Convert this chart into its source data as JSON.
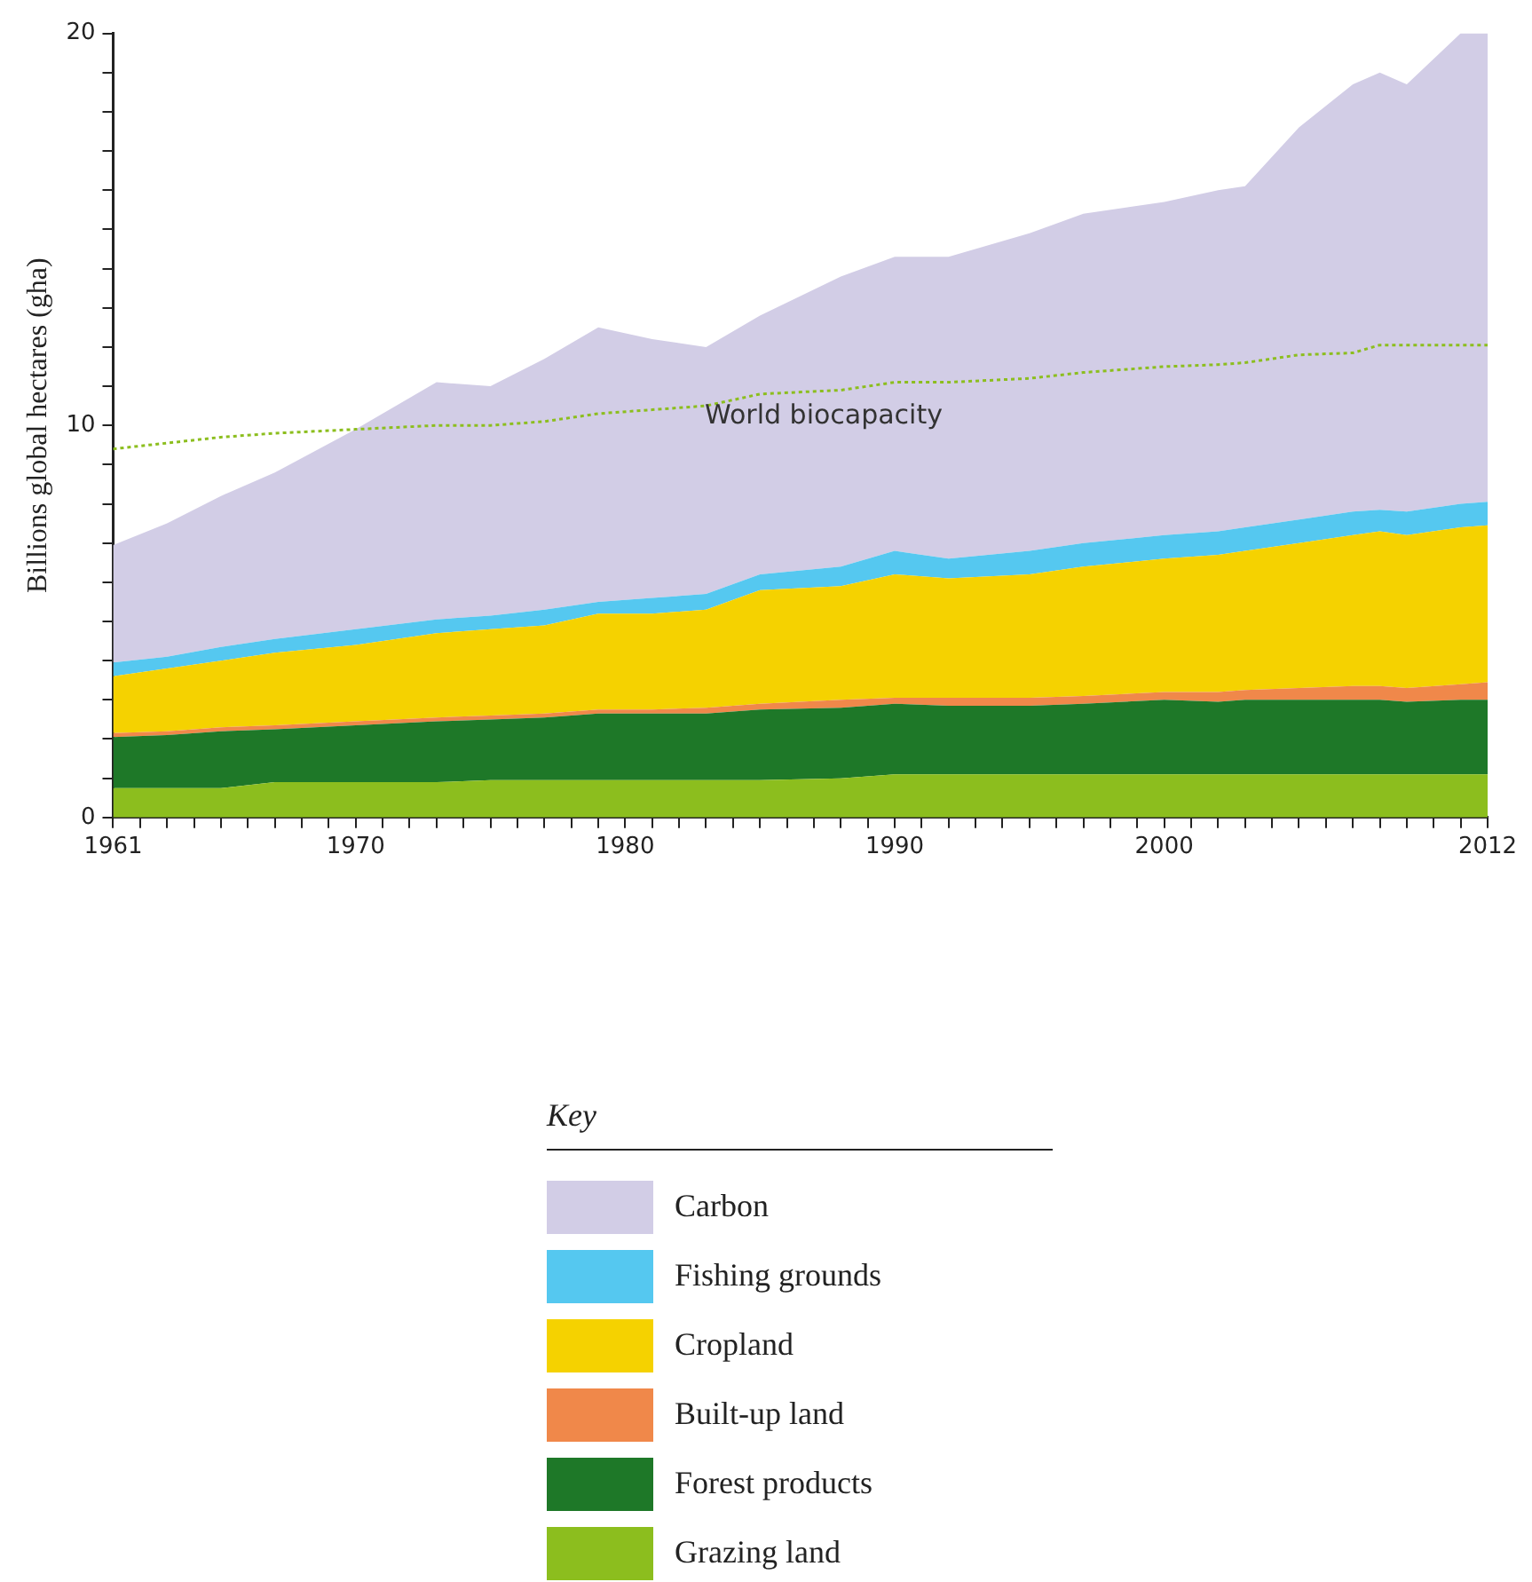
{
  "chart_data": {
    "type": "area",
    "stacked": true,
    "ylabel": "Billions global hectares (gha)",
    "legend_title": "Key",
    "legend": "bottom",
    "grid": false,
    "x": [
      1961,
      1963,
      1965,
      1967,
      1970,
      1973,
      1975,
      1977,
      1979,
      1981,
      1983,
      1985,
      1988,
      1990,
      1992,
      1995,
      1997,
      2000,
      2002,
      2003,
      2005,
      2007,
      2008,
      2009,
      2011,
      2012
    ],
    "xlim": [
      1961,
      2012
    ],
    "xticks": [
      1961,
      {
        "value": 1962,
        "label": null
      },
      {
        "value": 1963,
        "label": null
      },
      {
        "value": 1964,
        "label": null
      },
      {
        "value": 1965,
        "label": null
      },
      {
        "value": 1966,
        "label": null
      },
      {
        "value": 1967,
        "label": null
      },
      {
        "value": 1968,
        "label": null
      },
      {
        "value": 1969,
        "label": null
      },
      1970,
      {
        "value": 1971,
        "label": null
      },
      {
        "value": 1972,
        "label": null
      },
      {
        "value": 1973,
        "label": null
      },
      {
        "value": 1974,
        "label": null
      },
      {
        "value": 1975,
        "label": null
      },
      {
        "value": 1976,
        "label": null
      },
      {
        "value": 1977,
        "label": null
      },
      {
        "value": 1978,
        "label": null
      },
      {
        "value": 1979,
        "label": null
      },
      1980,
      {
        "value": 1981,
        "label": null
      },
      {
        "value": 1982,
        "label": null
      },
      {
        "value": 1983,
        "label": null
      },
      {
        "value": 1984,
        "label": null
      },
      {
        "value": 1985,
        "label": null
      },
      {
        "value": 1986,
        "label": null
      },
      {
        "value": 1987,
        "label": null
      },
      {
        "value": 1988,
        "label": null
      },
      {
        "value": 1989,
        "label": null
      },
      1990,
      {
        "value": 1991,
        "label": null
      },
      {
        "value": 1992,
        "label": null
      },
      {
        "value": 1993,
        "label": null
      },
      {
        "value": 1994,
        "label": null
      },
      {
        "value": 1995,
        "label": null
      },
      {
        "value": 1996,
        "label": null
      },
      {
        "value": 1997,
        "label": null
      },
      {
        "value": 1998,
        "label": null
      },
      {
        "value": 1999,
        "label": null
      },
      2000,
      {
        "value": 2001,
        "label": null
      },
      {
        "value": 2002,
        "label": null
      },
      {
        "value": 2003,
        "label": null
      },
      {
        "value": 2004,
        "label": null
      },
      {
        "value": 2005,
        "label": null
      },
      {
        "value": 2006,
        "label": null
      },
      {
        "value": 2007,
        "label": null
      },
      {
        "value": 2008,
        "label": null
      },
      {
        "value": 2009,
        "label": null
      },
      {
        "value": 2010,
        "label": null
      },
      {
        "value": 2011,
        "label": null
      },
      2012
    ],
    "ylim": [
      0,
      20
    ],
    "yticks": [
      0,
      {
        "value": 1,
        "label": null
      },
      {
        "value": 2,
        "label": null
      },
      {
        "value": 3,
        "label": null
      },
      {
        "value": 4,
        "label": null
      },
      {
        "value": 5,
        "label": null
      },
      {
        "value": 6,
        "label": null
      },
      {
        "value": 7,
        "label": null
      },
      {
        "value": 8,
        "label": null
      },
      {
        "value": 9,
        "label": null
      },
      10,
      {
        "value": 11,
        "label": null
      },
      {
        "value": 12,
        "label": null
      },
      {
        "value": 13,
        "label": null
      },
      {
        "value": 14,
        "label": null
      },
      {
        "value": 15,
        "label": null
      },
      {
        "value": 16,
        "label": null
      },
      {
        "value": 17,
        "label": null
      },
      {
        "value": 18,
        "label": null
      },
      {
        "value": 19,
        "label": null
      },
      20
    ],
    "series": [
      {
        "name": "Grazing land",
        "color": "#8cbe1e",
        "values": [
          0.75,
          0.75,
          0.75,
          0.9,
          0.9,
          0.9,
          0.95,
          0.95,
          0.95,
          0.95,
          0.95,
          0.95,
          1.0,
          1.1,
          1.1,
          1.1,
          1.1,
          1.1,
          1.1,
          1.1,
          1.1,
          1.1,
          1.1,
          1.1,
          1.1,
          1.1
        ]
      },
      {
        "name": "Forest products",
        "color": "#1e7828",
        "values": [
          1.3,
          1.35,
          1.45,
          1.35,
          1.45,
          1.55,
          1.55,
          1.6,
          1.7,
          1.7,
          1.7,
          1.8,
          1.8,
          1.8,
          1.75,
          1.75,
          1.8,
          1.9,
          1.85,
          1.9,
          1.9,
          1.9,
          1.9,
          1.85,
          1.9,
          1.9
        ]
      },
      {
        "name": "Built-up land",
        "color": "#f0884a",
        "values": [
          0.1,
          0.1,
          0.1,
          0.1,
          0.1,
          0.1,
          0.1,
          0.1,
          0.1,
          0.1,
          0.15,
          0.15,
          0.2,
          0.15,
          0.2,
          0.2,
          0.2,
          0.2,
          0.25,
          0.25,
          0.3,
          0.35,
          0.35,
          0.35,
          0.4,
          0.45
        ]
      },
      {
        "name": "Cropland",
        "color": "#f5d200",
        "values": [
          1.45,
          1.6,
          1.7,
          1.85,
          1.95,
          2.15,
          2.2,
          2.25,
          2.45,
          2.45,
          2.5,
          2.9,
          2.9,
          3.15,
          3.05,
          3.15,
          3.3,
          3.4,
          3.5,
          3.55,
          3.7,
          3.85,
          3.95,
          3.9,
          4.0,
          4.0
        ]
      },
      {
        "name": "Fishing grounds",
        "color": "#55c8f0",
        "values": [
          0.35,
          0.3,
          0.35,
          0.35,
          0.4,
          0.35,
          0.35,
          0.4,
          0.3,
          0.4,
          0.4,
          0.4,
          0.5,
          0.6,
          0.5,
          0.6,
          0.6,
          0.6,
          0.6,
          0.6,
          0.6,
          0.6,
          0.55,
          0.6,
          0.6,
          0.6
        ]
      },
      {
        "name": "Carbon",
        "color": "#d2cde6",
        "values": [
          3.0,
          3.4,
          3.85,
          4.25,
          5.1,
          6.05,
          5.85,
          6.4,
          7.0,
          6.6,
          6.3,
          6.6,
          7.4,
          7.5,
          7.7,
          8.1,
          8.4,
          8.5,
          8.7,
          8.7,
          10.0,
          10.9,
          11.15,
          10.9,
          12.0,
          11.95
        ]
      },
      {
        "name": "World biocapacity",
        "type": "line",
        "line_style": "dotted",
        "marker": "none",
        "color": "#8cbe1e",
        "values": [
          9.4,
          9.55,
          9.7,
          9.8,
          9.9,
          10.0,
          10.0,
          10.1,
          10.3,
          10.4,
          10.5,
          10.8,
          10.9,
          11.1,
          11.1,
          11.2,
          11.35,
          11.5,
          11.55,
          11.6,
          11.8,
          11.85,
          12.05,
          12.05,
          12.05,
          12.05
        ]
      }
    ]
  }
}
